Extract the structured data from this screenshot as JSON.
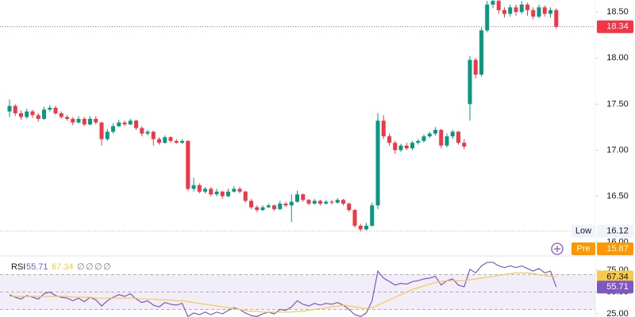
{
  "chart_data": {
    "type": "candlestick",
    "up_color": "#089981",
    "down_color": "#f23645",
    "ylim": [
      15.86,
      18.63
    ],
    "yticks": [
      {
        "value": 16,
        "label": "16.00"
      },
      {
        "value": 16.5,
        "label": "16.50"
      },
      {
        "value": 17,
        "label": "17.00"
      },
      {
        "value": 17.5,
        "label": "17.50"
      },
      {
        "value": 18,
        "label": "18.00"
      },
      {
        "value": 18.5,
        "label": "18.50"
      }
    ],
    "open": [
      17.42,
      17.48,
      17.4,
      17.36,
      17.42,
      17.38,
      17.34,
      17.44,
      17.46,
      17.4,
      17.36,
      17.34,
      17.3,
      17.34,
      17.28,
      17.34,
      17.3,
      17.12,
      17.2,
      17.26,
      17.3,
      17.28,
      17.32,
      17.24,
      17.18,
      17.2,
      17.12,
      17.08,
      17.14,
      17.1,
      17.08,
      17.1,
      16.58,
      16.62,
      16.55,
      16.58,
      16.52,
      16.55,
      16.5,
      16.55,
      16.58,
      16.55,
      16.45,
      16.38,
      16.35,
      16.38,
      16.4,
      16.36,
      16.42,
      16.4,
      16.44,
      16.52,
      16.46,
      16.42,
      16.45,
      16.42,
      16.44,
      16.43,
      16.46,
      16.42,
      16.35,
      16.18,
      16.14,
      16.18,
      16.4,
      17.32,
      17.15,
      17.08,
      17.0,
      17.05,
      17.02,
      17.08,
      17.1,
      17.15,
      17.18,
      17.22,
      17.05,
      17.15,
      17.2,
      17.08,
      17.5,
      17.98,
      17.82,
      18.3,
      18.58,
      18.62,
      18.52,
      18.48,
      18.55,
      18.5,
      18.58,
      18.52,
      18.45,
      18.55,
      18.48,
      18.52
    ],
    "high": [
      17.55,
      17.5,
      17.43,
      17.45,
      17.44,
      17.4,
      17.47,
      17.49,
      17.48,
      17.42,
      17.38,
      17.36,
      17.37,
      17.36,
      17.37,
      17.37,
      17.31,
      17.23,
      17.29,
      17.33,
      17.32,
      17.34,
      17.33,
      17.26,
      17.22,
      17.21,
      17.14,
      17.16,
      17.15,
      17.12,
      17.12,
      17.11,
      16.7,
      16.64,
      16.6,
      16.6,
      16.58,
      16.56,
      16.58,
      16.61,
      16.6,
      16.56,
      16.47,
      16.4,
      16.4,
      16.42,
      16.41,
      16.45,
      16.44,
      16.52,
      16.56,
      16.53,
      16.47,
      16.47,
      16.46,
      16.46,
      16.46,
      16.48,
      16.47,
      16.43,
      16.36,
      16.2,
      16.21,
      16.43,
      17.4,
      17.38,
      17.18,
      17.1,
      17.07,
      17.08,
      17.1,
      17.12,
      17.17,
      17.2,
      17.25,
      17.23,
      17.18,
      17.22,
      17.21,
      17.12,
      18.02,
      18.0,
      18.33,
      18.62,
      18.66,
      18.64,
      18.55,
      18.58,
      18.58,
      18.62,
      18.6,
      18.55,
      18.58,
      18.57,
      18.55,
      18.54
    ],
    "low": [
      17.36,
      17.37,
      17.33,
      17.34,
      17.35,
      17.31,
      17.33,
      17.42,
      17.38,
      17.34,
      17.32,
      17.27,
      17.29,
      17.26,
      17.27,
      17.28,
      17.05,
      17.1,
      17.18,
      17.25,
      17.26,
      17.27,
      17.22,
      17.15,
      17.16,
      17.05,
      17.06,
      17.07,
      17.08,
      17.07,
      17.07,
      16.56,
      16.55,
      16.53,
      16.53,
      16.5,
      16.5,
      16.47,
      16.49,
      16.54,
      16.53,
      16.43,
      16.36,
      16.33,
      16.34,
      16.37,
      16.34,
      16.35,
      16.38,
      16.22,
      16.43,
      16.44,
      16.4,
      16.41,
      16.4,
      16.41,
      16.41,
      16.42,
      16.4,
      16.33,
      16.16,
      16.12,
      16.13,
      16.17,
      16.36,
      17.12,
      17.05,
      16.96,
      16.98,
      17.0,
      17.0,
      17.06,
      17.08,
      17.13,
      17.16,
      17.02,
      17.03,
      17.12,
      17.06,
      17.01,
      17.32,
      17.78,
      17.8,
      18.28,
      18.54,
      18.48,
      18.44,
      18.45,
      18.46,
      18.48,
      18.46,
      18.42,
      18.43,
      18.45,
      18.44,
      18.32
    ],
    "close": [
      17.48,
      17.4,
      17.36,
      17.42,
      17.38,
      17.34,
      17.44,
      17.46,
      17.4,
      17.36,
      17.34,
      17.3,
      17.34,
      17.28,
      17.34,
      17.3,
      17.12,
      17.2,
      17.26,
      17.3,
      17.28,
      17.32,
      17.24,
      17.18,
      17.2,
      17.12,
      17.08,
      17.14,
      17.1,
      17.08,
      17.1,
      16.58,
      16.62,
      16.55,
      16.58,
      16.52,
      16.55,
      16.5,
      16.55,
      16.58,
      16.55,
      16.45,
      16.38,
      16.35,
      16.38,
      16.4,
      16.36,
      16.42,
      16.4,
      16.44,
      16.52,
      16.46,
      16.42,
      16.45,
      16.42,
      16.44,
      16.43,
      16.46,
      16.42,
      16.35,
      16.18,
      16.14,
      16.18,
      16.4,
      17.32,
      17.15,
      17.08,
      17.0,
      17.05,
      17.02,
      17.08,
      17.1,
      17.15,
      17.18,
      17.22,
      17.05,
      17.15,
      17.2,
      17.08,
      17.04,
      17.98,
      17.82,
      18.3,
      18.58,
      18.62,
      18.52,
      18.48,
      18.55,
      18.5,
      18.58,
      18.52,
      18.45,
      18.55,
      18.48,
      18.52,
      18.34
    ],
    "markers": [
      {
        "label": "Low",
        "value": 16.12,
        "color": "#131722"
      },
      {
        "label": "Pre",
        "value": 15.87,
        "color": "#ff9800"
      }
    ],
    "indicator": {
      "type": "line",
      "name": "RSI",
      "placeholders": [
        "∅",
        "∅",
        "∅",
        "∅"
      ],
      "ylim": [
        21.4,
        89.5
      ],
      "yticks": [
        {
          "value": 25,
          "label": "25.00"
        },
        {
          "value": 50,
          "label": "50.00"
        },
        {
          "value": 75,
          "label": "75.00"
        }
      ],
      "bands": [
        70,
        50,
        30
      ],
      "series": [
        {
          "color": "#7e57c2",
          "values": [
            47,
            44,
            42,
            46,
            44,
            42,
            48,
            50,
            46,
            44,
            43,
            40,
            43,
            39,
            44,
            41,
            34,
            40,
            44,
            47,
            45,
            48,
            42,
            38,
            40,
            35,
            33,
            38,
            36,
            35,
            37,
            22,
            26,
            24,
            27,
            24,
            27,
            25,
            29,
            32,
            30,
            26,
            23,
            22,
            25,
            27,
            25,
            30,
            29,
            33,
            40,
            36,
            34,
            37,
            35,
            37,
            36,
            38,
            35,
            30,
            24,
            22,
            26,
            40,
            74,
            66,
            62,
            58,
            60,
            59,
            62,
            63,
            65,
            66,
            68,
            58,
            63,
            65,
            58,
            56,
            76,
            72,
            80,
            84,
            84,
            80,
            78,
            80,
            78,
            80,
            77,
            74,
            77,
            72,
            74,
            55.71
          ]
        },
        {
          "color": "#f7c948",
          "values": [
            45,
            45,
            45,
            45,
            45,
            45,
            45,
            45,
            45,
            45,
            45,
            44,
            44,
            44,
            44,
            43,
            43,
            43,
            43,
            43,
            43,
            43,
            43,
            42,
            42,
            42,
            41,
            41,
            41,
            40,
            40,
            39,
            38,
            37,
            36,
            35,
            34,
            33,
            32,
            31,
            30,
            29,
            28,
            28,
            27,
            27,
            27,
            27,
            27,
            27,
            28,
            28,
            29,
            30,
            31,
            32,
            33,
            34,
            35,
            34,
            33,
            32,
            31,
            32,
            35,
            38,
            41,
            44,
            47,
            50,
            53,
            55,
            57,
            59,
            61,
            62,
            63,
            63,
            63,
            63,
            64,
            65,
            66,
            67,
            68,
            69,
            70,
            71,
            72,
            72,
            72,
            71,
            70,
            69,
            68,
            67.34
          ]
        }
      ]
    }
  }
}
